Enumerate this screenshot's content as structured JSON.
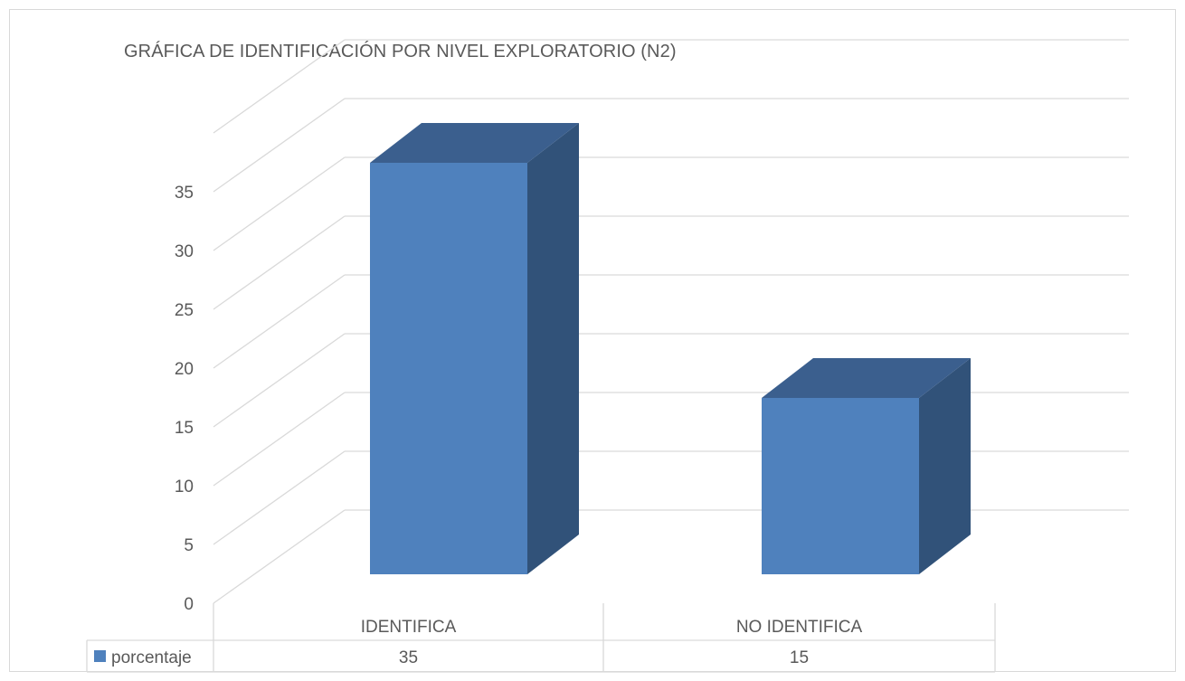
{
  "chart_data": {
    "type": "bar",
    "title": "GRÁFICA DE IDENTIFICACIÓN POR NIVEL EXPLORATORIO (N2)",
    "categories": [
      "IDENTIFICA",
      "NO IDENTIFICA"
    ],
    "series": [
      {
        "name": "porcentaje",
        "values": [
          35,
          15
        ],
        "color": "#4f81bd"
      }
    ],
    "y_ticks": [
      "0",
      "5",
      "10",
      "15",
      "20",
      "25",
      "30",
      "35"
    ],
    "ylim": [
      0,
      40
    ],
    "grid": true,
    "three_d": true,
    "legend": "data-table-bottom",
    "data_table": true,
    "colors": {
      "bar_front": "#4f81bd",
      "bar_top": "#3b5f8e",
      "bar_side": "#315279",
      "grid": "#d9d9d9",
      "text": "#595959"
    }
  }
}
